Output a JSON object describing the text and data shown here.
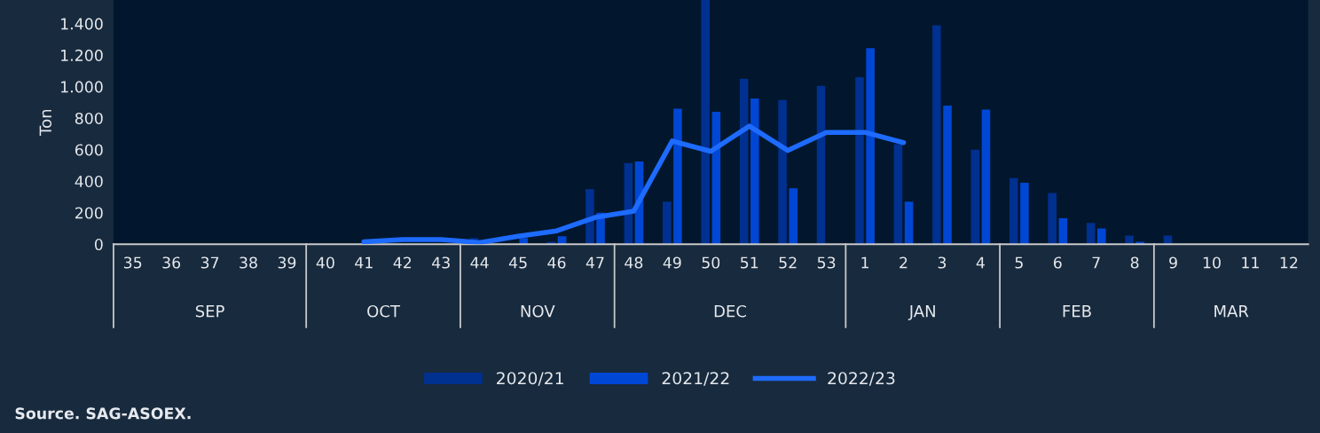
{
  "chart_data": {
    "type": "bar",
    "ylabel": "Ton",
    "categories": [
      "35",
      "36",
      "37",
      "38",
      "39",
      "40",
      "41",
      "42",
      "43",
      "44",
      "45",
      "46",
      "47",
      "48",
      "49",
      "50",
      "51",
      "52",
      "53",
      "1",
      "2",
      "3",
      "4",
      "5",
      "6",
      "7",
      "8",
      "9",
      "10",
      "11",
      "12"
    ],
    "series": [
      {
        "name": "2020/21",
        "color": "#003090",
        "values": [
          null,
          null,
          null,
          null,
          null,
          null,
          null,
          null,
          null,
          40,
          null,
          15,
          350,
          515,
          270,
          1550,
          1050,
          915,
          1005,
          1060,
          635,
          1390,
          600,
          420,
          325,
          135,
          55,
          55,
          null,
          null,
          null
        ]
      },
      {
        "name": "2021/22",
        "color": "#0047d6",
        "values": [
          null,
          null,
          null,
          null,
          null,
          null,
          null,
          null,
          null,
          null,
          40,
          50,
          200,
          525,
          860,
          840,
          925,
          355,
          null,
          1245,
          270,
          880,
          855,
          390,
          165,
          100,
          15,
          null,
          null,
          null,
          null
        ]
      },
      {
        "name": "2022/23",
        "type": "line",
        "color": "#1e6bff",
        "values": [
          null,
          null,
          null,
          null,
          null,
          null,
          15,
          30,
          30,
          10,
          50,
          85,
          170,
          210,
          655,
          590,
          750,
          595,
          710,
          710,
          645,
          null,
          null,
          null,
          null,
          null,
          null,
          null,
          null,
          null,
          null
        ]
      }
    ],
    "ylim": [
      0,
      1550
    ],
    "yticks": [
      0,
      200,
      400,
      600,
      800,
      {
        "value": 1000,
        "label": "1.000"
      },
      {
        "value": 1200,
        "label": "1.200"
      },
      {
        "value": 1400,
        "label": "1.400"
      }
    ],
    "grid": false,
    "legend": "bottom",
    "marker": "none",
    "line_style": "solid",
    "annotations": [
      "SEP",
      "OCT",
      "NOV",
      "DEC",
      "JAN",
      "FEB",
      "MAR",
      "Source. SAG-ASOEX."
    ]
  }
}
